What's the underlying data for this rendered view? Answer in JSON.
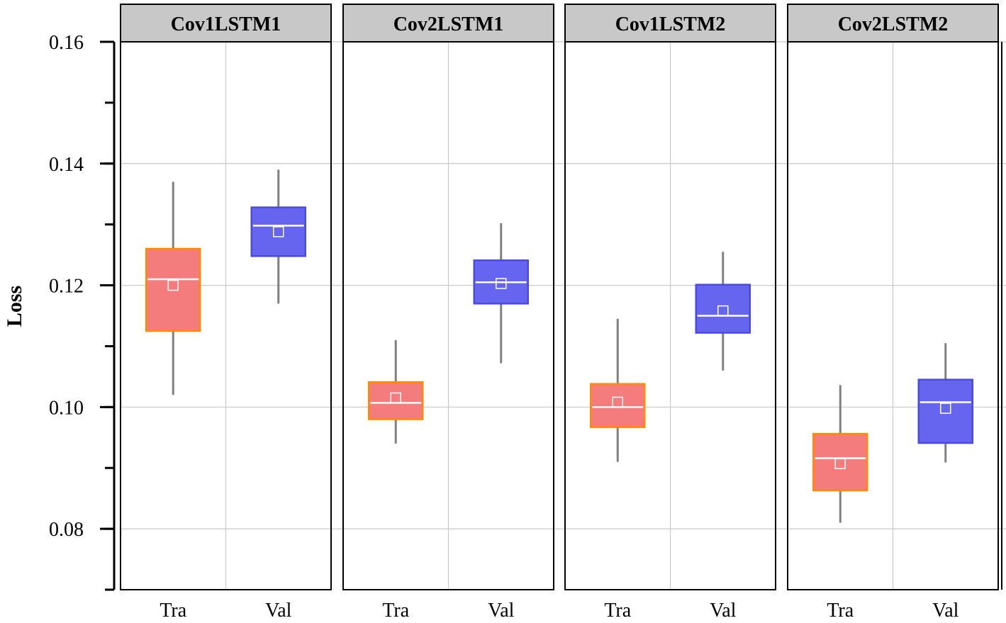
{
  "chart_data": {
    "type": "box",
    "ylabel": "Loss",
    "ylim": [
      0.07,
      0.16
    ],
    "yticks": [
      "0.16",
      "0.14",
      "0.12",
      "0.10",
      "0.08"
    ],
    "categories": [
      "Tra",
      "Val"
    ],
    "grid": true,
    "colors": {
      "Tra": {
        "fill": "#f47c7c",
        "stroke": "#ff8c00"
      },
      "Val": {
        "fill": "#6565f0",
        "stroke": "#4a4ae0"
      },
      "whisker": "#808080",
      "panel_header": "#c8c8c8",
      "gridline": "#c8c8c8"
    },
    "panels": [
      {
        "title": "Cov1LSTM1",
        "boxes": [
          {
            "category": "Tra",
            "whisker_low": 0.102,
            "q1": 0.1125,
            "median": 0.121,
            "q3": 0.126,
            "whisker_high": 0.137,
            "mean": 0.12
          },
          {
            "category": "Val",
            "whisker_low": 0.117,
            "q1": 0.1248,
            "median": 0.1298,
            "q3": 0.1328,
            "whisker_high": 0.139,
            "mean": 0.1288
          }
        ]
      },
      {
        "title": "Cov2LSTM1",
        "boxes": [
          {
            "category": "Tra",
            "whisker_low": 0.094,
            "q1": 0.098,
            "median": 0.1007,
            "q3": 0.1041,
            "whisker_high": 0.111,
            "mean": 0.1015
          },
          {
            "category": "Val",
            "whisker_low": 0.1072,
            "q1": 0.117,
            "median": 0.1205,
            "q3": 0.1241,
            "whisker_high": 0.1302,
            "mean": 0.1203
          }
        ]
      },
      {
        "title": "Cov1LSTM2",
        "boxes": [
          {
            "category": "Tra",
            "whisker_low": 0.091,
            "q1": 0.0967,
            "median": 0.1,
            "q3": 0.1038,
            "whisker_high": 0.1145,
            "mean": 0.1008
          },
          {
            "category": "Val",
            "whisker_low": 0.106,
            "q1": 0.1122,
            "median": 0.115,
            "q3": 0.1201,
            "whisker_high": 0.1255,
            "mean": 0.1158
          }
        ]
      },
      {
        "title": "Cov2LSTM2",
        "boxes": [
          {
            "category": "Tra",
            "whisker_low": 0.081,
            "q1": 0.0863,
            "median": 0.0916,
            "q3": 0.0956,
            "whisker_high": 0.1036,
            "mean": 0.0907
          },
          {
            "category": "Val",
            "whisker_low": 0.0909,
            "q1": 0.0941,
            "median": 0.1008,
            "q3": 0.1045,
            "whisker_high": 0.1105,
            "mean": 0.0998
          }
        ]
      }
    ]
  }
}
